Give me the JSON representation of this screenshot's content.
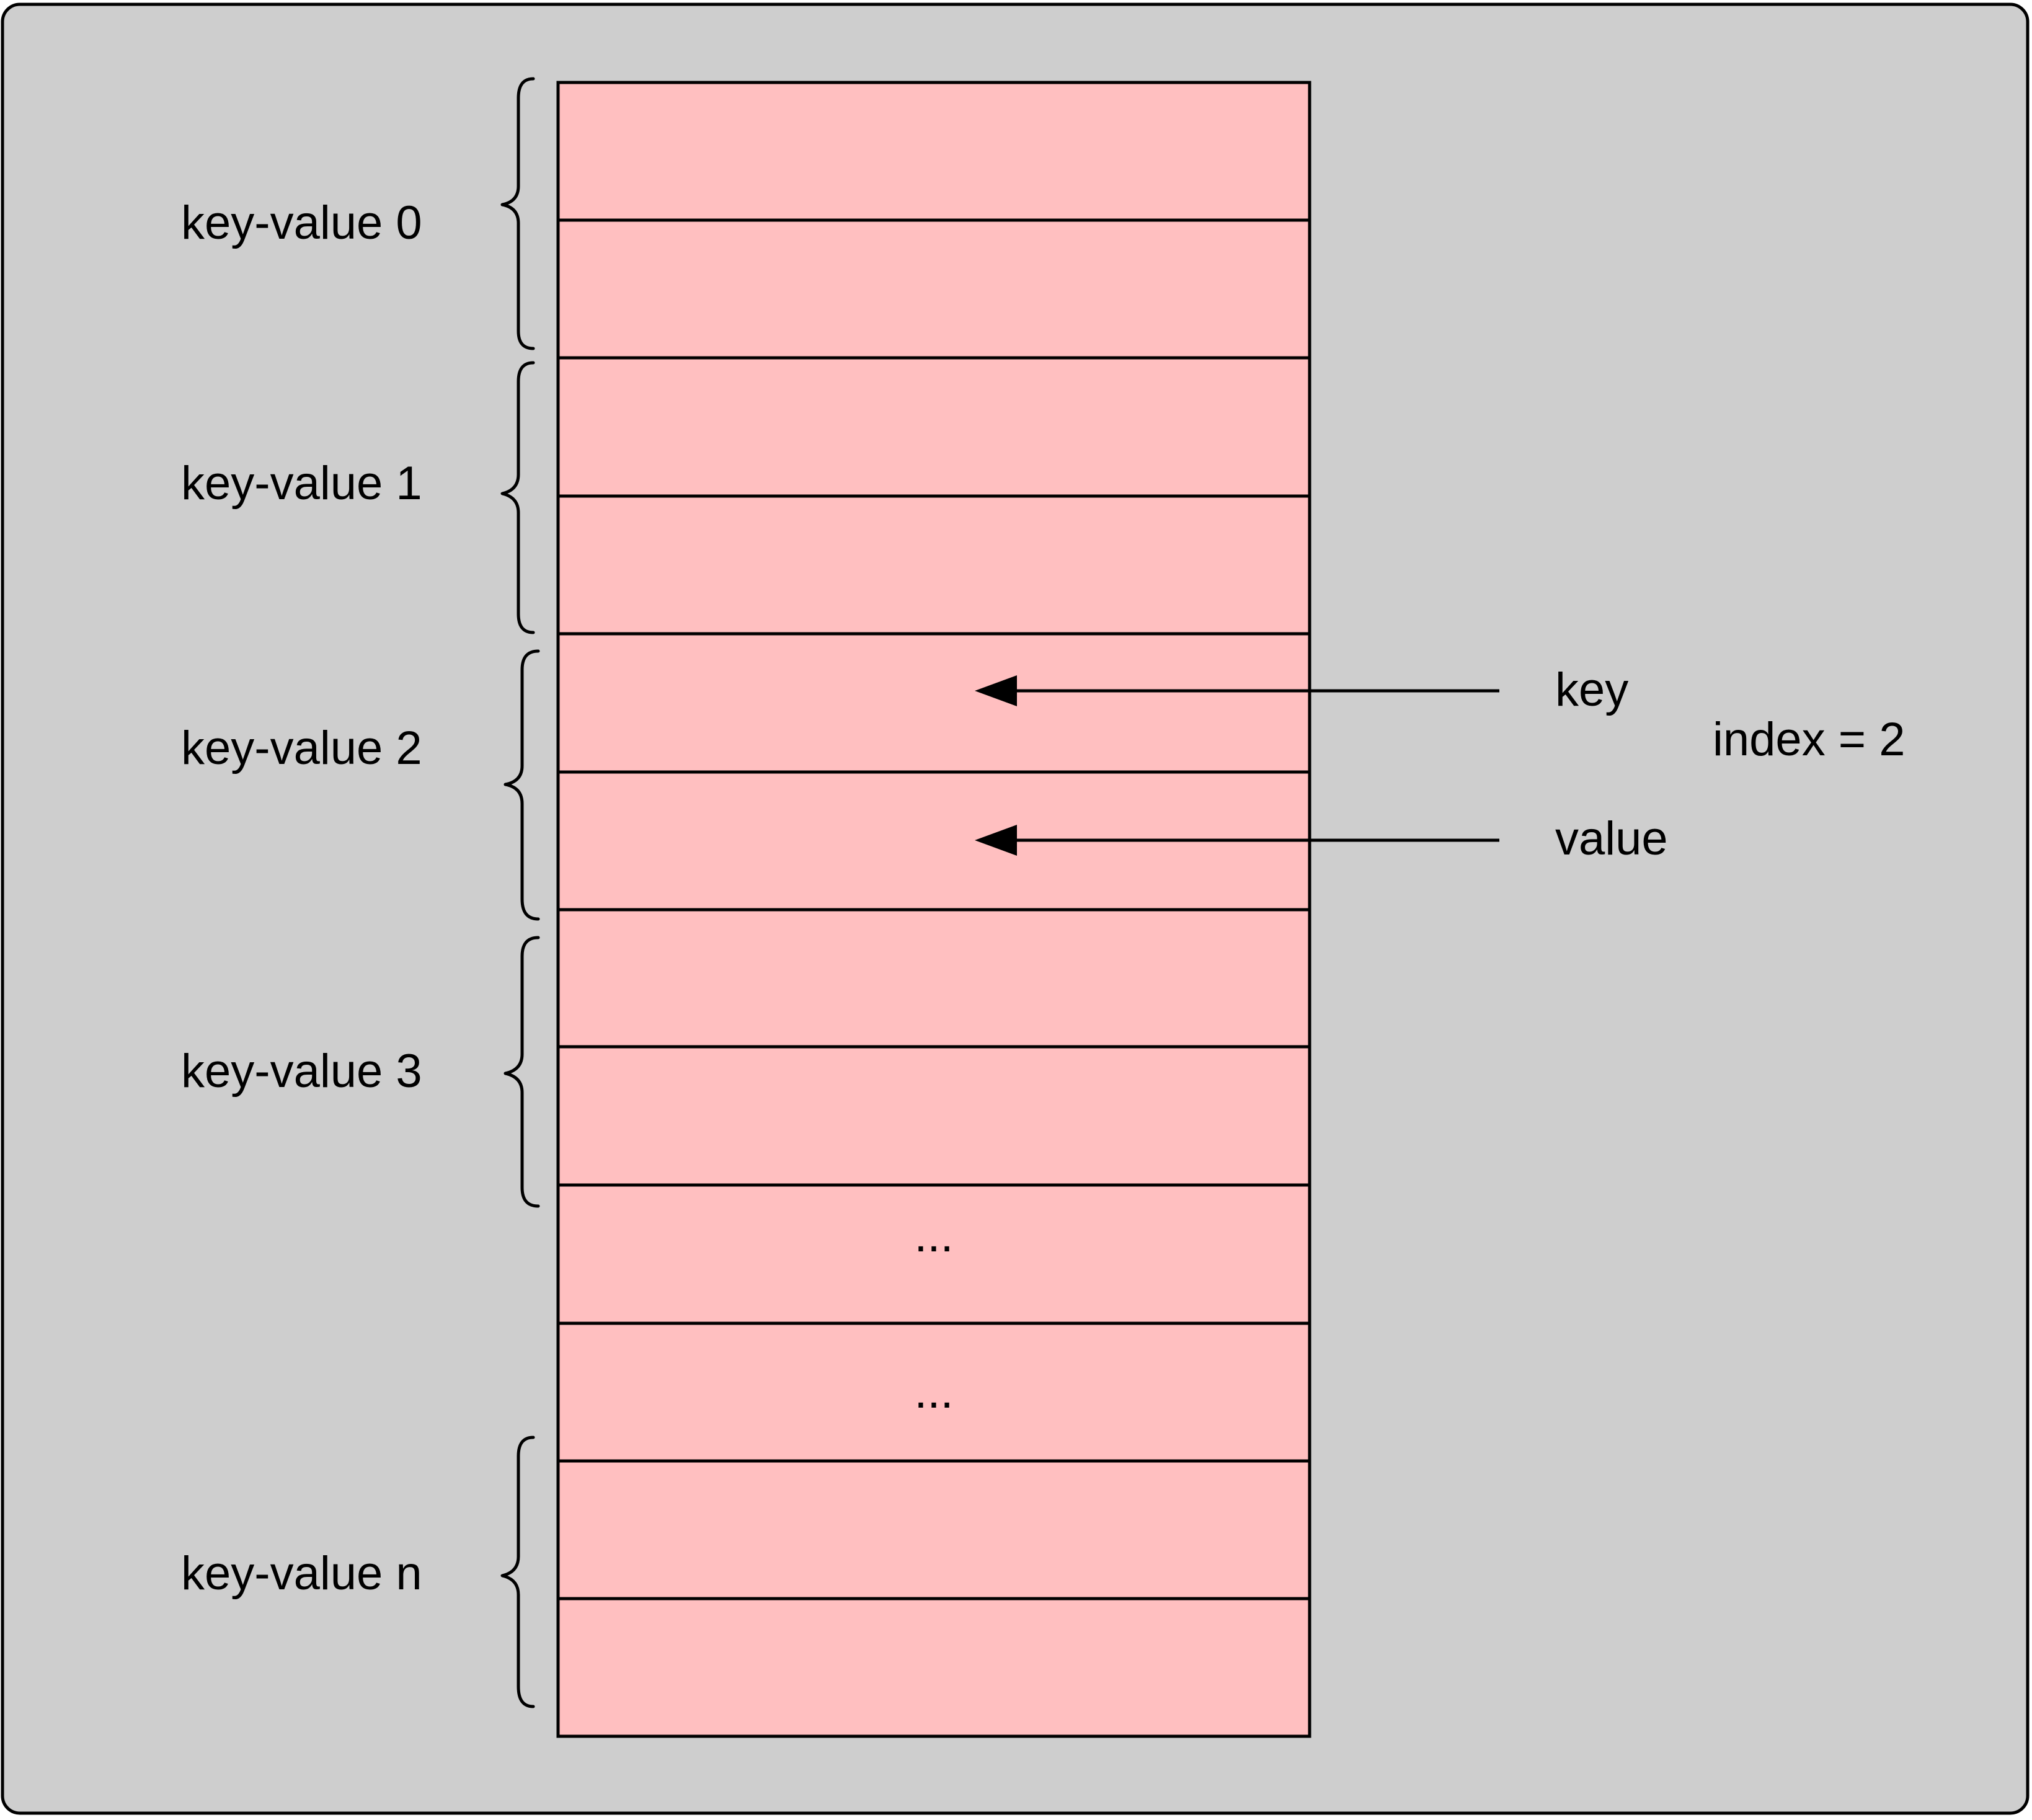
{
  "diagram": {
    "group_labels": [
      "key-value 0",
      "key-value 1",
      "key-value 2",
      "key-value 3",
      "key-value n"
    ],
    "ellipsis_labels": [
      "...",
      "..."
    ],
    "pointer_labels": {
      "key": "key",
      "value": "value"
    },
    "index_label": "index = 2",
    "colors": {
      "background": "#cecece",
      "cell_fill": "#ffbfc0",
      "stroke": "#000000",
      "text": "#000000"
    }
  }
}
